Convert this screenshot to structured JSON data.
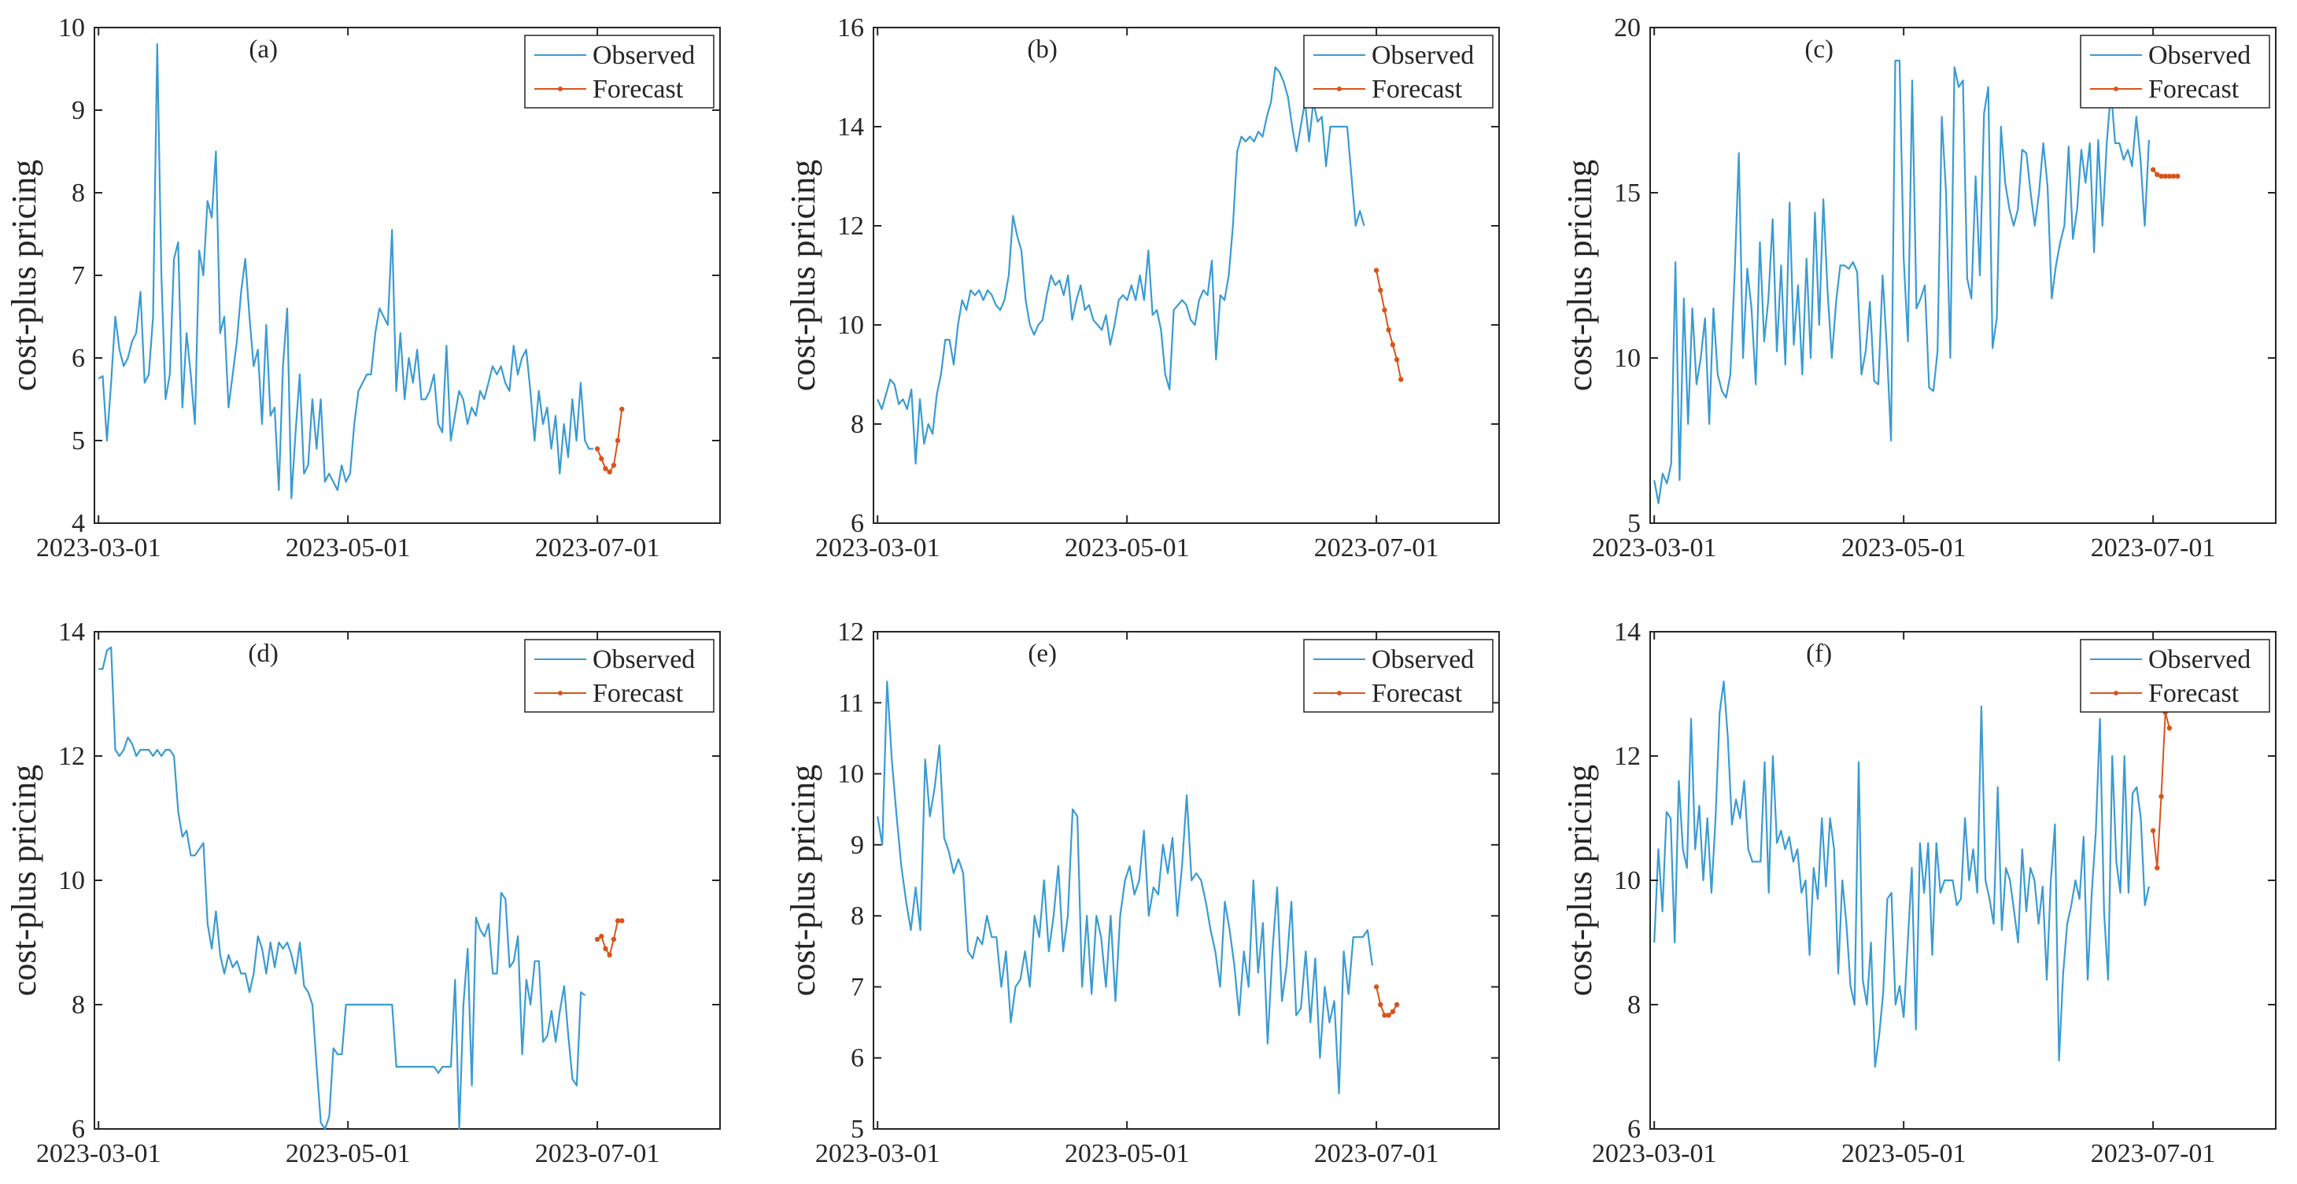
{
  "colors": {
    "observed": "#3a9bd2",
    "forecast": "#d9541a",
    "axis": "#262626",
    "background": "#ffffff"
  },
  "chart_data": [
    {
      "type": "line",
      "panel_label": "(a)",
      "ylabel": "cost-plus pricing",
      "ylim": [
        4,
        10
      ],
      "yticks": [
        "4",
        "5",
        "6",
        "7",
        "8",
        "9",
        "10"
      ],
      "xticks": [
        "2023-03-01",
        "2023-05-01",
        "2023-07-01"
      ],
      "legend": [
        "Observed",
        "Forecast"
      ],
      "legend_location": "top-right",
      "series": [
        {
          "name": "Observed",
          "values": [
            5.75,
            5.78,
            5.0,
            5.7,
            6.5,
            6.1,
            5.9,
            6.0,
            6.2,
            6.3,
            6.8,
            5.7,
            5.8,
            6.5,
            9.8,
            7.0,
            5.5,
            5.8,
            7.2,
            7.4,
            5.4,
            6.3,
            5.8,
            5.2,
            7.3,
            7.0,
            7.9,
            7.7,
            8.5,
            6.3,
            6.5,
            5.4,
            5.8,
            6.2,
            6.8,
            7.2,
            6.5,
            5.9,
            6.1,
            5.2,
            6.4,
            5.3,
            5.4,
            4.4,
            5.9,
            6.6,
            4.3,
            5.1,
            5.8,
            4.6,
            4.7,
            5.5,
            4.9,
            5.5,
            4.5,
            4.6,
            4.5,
            4.4,
            4.7,
            4.5,
            4.6,
            5.2,
            5.6,
            5.7,
            5.8,
            5.8,
            6.3,
            6.6,
            6.5,
            6.4,
            7.55,
            5.6,
            6.3,
            5.5,
            6.0,
            5.7,
            6.1,
            5.5,
            5.5,
            5.6,
            5.8,
            5.2,
            5.1,
            6.15,
            5.0,
            5.3,
            5.6,
            5.5,
            5.2,
            5.4,
            5.3,
            5.6,
            5.5,
            5.7,
            5.9,
            5.8,
            5.9,
            5.7,
            5.6,
            6.15,
            5.8,
            6.0,
            6.1,
            5.6,
            5.0,
            5.6,
            5.2,
            5.4,
            4.9,
            5.3,
            4.6,
            5.2,
            4.8,
            5.5,
            5.0,
            5.7,
            5.0,
            4.9,
            4.9
          ],
          "x_start": "2023-03-01",
          "x_end": "2023-06-30"
        },
        {
          "name": "Forecast",
          "values": [
            4.9,
            4.78,
            4.66,
            4.62,
            4.7,
            5.0,
            5.38
          ],
          "x_start": "2023-07-01",
          "x_end": "2023-07-07"
        }
      ]
    },
    {
      "type": "line",
      "panel_label": "(b)",
      "ylabel": "cost-plus pricing",
      "ylim": [
        6,
        16
      ],
      "yticks": [
        "6",
        "8",
        "10",
        "12",
        "14",
        "16"
      ],
      "xticks": [
        "2023-03-01",
        "2023-05-01",
        "2023-07-01"
      ],
      "legend": [
        "Observed",
        "Forecast"
      ],
      "legend_location": "top-right",
      "series": [
        {
          "name": "Observed",
          "values": [
            8.5,
            8.3,
            8.6,
            8.9,
            8.8,
            8.4,
            8.5,
            8.3,
            8.7,
            7.2,
            8.5,
            7.6,
            8.0,
            7.8,
            8.6,
            9.0,
            9.7,
            9.7,
            9.2,
            10.0,
            10.5,
            10.3,
            10.7,
            10.6,
            10.7,
            10.5,
            10.7,
            10.6,
            10.4,
            10.3,
            10.5,
            11.0,
            12.2,
            11.8,
            11.5,
            10.5,
            10.0,
            9.8,
            10.0,
            10.1,
            10.6,
            11.0,
            10.8,
            10.9,
            10.6,
            11.0,
            10.1,
            10.5,
            10.8,
            10.3,
            10.4,
            10.1,
            10.0,
            9.9,
            10.2,
            9.6,
            10.0,
            10.5,
            10.6,
            10.5,
            10.8,
            10.5,
            11.0,
            10.5,
            11.5,
            10.2,
            10.3,
            9.9,
            9.0,
            8.7,
            10.3,
            10.4,
            10.5,
            10.4,
            10.1,
            10.0,
            10.5,
            10.7,
            10.6,
            11.3,
            9.3,
            10.6,
            10.5,
            11.0,
            12.0,
            13.5,
            13.8,
            13.7,
            13.8,
            13.7,
            13.9,
            13.8,
            14.2,
            14.5,
            15.2,
            15.1,
            14.9,
            14.6,
            14.0,
            13.5,
            14.0,
            14.5,
            13.7,
            14.5,
            14.1,
            14.2,
            13.2,
            14.0,
            14.0,
            14.0,
            14.0,
            14.0,
            13.0,
            12.0,
            12.3,
            12.0
          ],
          "x_start": "2023-03-01",
          "x_end": "2023-06-28"
        },
        {
          "name": "Forecast",
          "values": [
            11.1,
            10.7,
            10.3,
            9.9,
            9.6,
            9.3,
            8.9
          ],
          "x_start": "2023-07-01",
          "x_end": "2023-07-07"
        }
      ]
    },
    {
      "type": "line",
      "panel_label": "(c)",
      "ylabel": "cost-plus pricing",
      "ylim": [
        5,
        20
      ],
      "yticks": [
        "5",
        "10",
        "15",
        "20"
      ],
      "xticks": [
        "2023-03-01",
        "2023-05-01",
        "2023-07-01"
      ],
      "legend": [
        "Observed",
        "Forecast"
      ],
      "legend_location": "top-right",
      "series": [
        {
          "name": "Observed",
          "values": [
            6.3,
            5.6,
            6.5,
            6.2,
            6.8,
            12.9,
            6.3,
            11.8,
            8.0,
            11.5,
            9.2,
            10.0,
            11.2,
            8.0,
            11.5,
            9.5,
            9.0,
            8.8,
            9.5,
            12.5,
            16.2,
            10.0,
            12.7,
            11.5,
            9.2,
            13.5,
            10.5,
            11.8,
            14.2,
            10.2,
            12.8,
            9.8,
            14.7,
            10.4,
            12.2,
            9.5,
            13.0,
            10.0,
            14.4,
            11.0,
            14.8,
            12.0,
            10.0,
            11.7,
            12.8,
            12.8,
            12.7,
            12.9,
            12.6,
            9.5,
            10.2,
            11.7,
            9.3,
            9.2,
            12.5,
            10.3,
            7.5,
            19.0,
            19.0,
            13.0,
            10.5,
            18.4,
            11.5,
            11.8,
            12.2,
            9.1,
            9.0,
            10.2,
            17.3,
            15.0,
            10.0,
            18.8,
            18.2,
            18.4,
            12.4,
            11.8,
            15.5,
            12.5,
            17.4,
            18.2,
            10.3,
            11.2,
            17.0,
            15.3,
            14.5,
            14.0,
            14.5,
            16.3,
            16.2,
            15.0,
            14.0,
            15.0,
            16.5,
            15.2,
            11.8,
            12.8,
            13.5,
            14.0,
            16.4,
            13.6,
            14.5,
            16.3,
            15.3,
            16.5,
            13.2,
            16.6,
            14.0,
            16.5,
            18.1,
            16.5,
            16.5,
            16.0,
            16.3,
            15.8,
            17.3,
            16.0,
            14.0,
            16.6
          ],
          "x_start": "2023-03-01",
          "x_end": "2023-06-30"
        },
        {
          "name": "Forecast",
          "values": [
            15.7,
            15.55,
            15.5,
            15.5,
            15.5,
            15.5,
            15.5
          ],
          "x_start": "2023-07-01",
          "x_end": "2023-07-07"
        }
      ]
    },
    {
      "type": "line",
      "panel_label": "(d)",
      "ylabel": "cost-plus pricing",
      "ylim": [
        6,
        14
      ],
      "yticks": [
        "6",
        "8",
        "10",
        "12",
        "14"
      ],
      "xticks": [
        "2023-03-01",
        "2023-05-01",
        "2023-07-01"
      ],
      "legend": [
        "Observed",
        "Forecast"
      ],
      "legend_location": "top-right",
      "series": [
        {
          "name": "Observed",
          "values": [
            13.4,
            13.4,
            13.7,
            13.75,
            12.1,
            12.0,
            12.1,
            12.3,
            12.2,
            12.0,
            12.1,
            12.1,
            12.1,
            12.0,
            12.1,
            12.0,
            12.1,
            12.1,
            12.0,
            11.1,
            10.7,
            10.8,
            10.4,
            10.4,
            10.5,
            10.6,
            9.3,
            8.9,
            9.5,
            8.8,
            8.5,
            8.8,
            8.6,
            8.7,
            8.5,
            8.5,
            8.2,
            8.5,
            9.1,
            8.9,
            8.5,
            9.0,
            8.6,
            9.0,
            8.9,
            9.0,
            8.8,
            8.5,
            9.0,
            8.3,
            8.2,
            8.0,
            7.0,
            6.1,
            6.0,
            6.2,
            7.3,
            7.2,
            7.2,
            8.0,
            8.0,
            8.0,
            8.0,
            8.0,
            8.0,
            8.0,
            8.0,
            8.0,
            8.0,
            8.0,
            8.0,
            7.0,
            7.0,
            7.0,
            7.0,
            7.0,
            7.0,
            7.0,
            7.0,
            7.0,
            7.0,
            6.9,
            7.0,
            7.0,
            7.0,
            8.4,
            6.0,
            8.0,
            8.9,
            6.7,
            9.4,
            9.2,
            9.1,
            9.3,
            8.5,
            8.5,
            9.8,
            9.7,
            8.6,
            8.7,
            9.1,
            7.2,
            8.4,
            8.0,
            8.7,
            8.7,
            7.4,
            7.5,
            7.9,
            7.4,
            7.9,
            8.3,
            7.5,
            6.8,
            6.7,
            8.2,
            8.15
          ],
          "x_start": "2023-03-01",
          "x_end": "2023-06-28"
        },
        {
          "name": "Forecast",
          "values": [
            9.05,
            9.1,
            8.9,
            8.8,
            9.05,
            9.35,
            9.35
          ],
          "x_start": "2023-07-01",
          "x_end": "2023-07-07"
        }
      ]
    },
    {
      "type": "line",
      "panel_label": "(e)",
      "ylabel": "cost-plus pricing",
      "ylim": [
        5,
        12
      ],
      "yticks": [
        "5",
        "6",
        "7",
        "8",
        "9",
        "10",
        "11",
        "12"
      ],
      "xticks": [
        "2023-03-01",
        "2023-05-01",
        "2023-07-01"
      ],
      "legend": [
        "Observed",
        "Forecast"
      ],
      "legend_location": "top-right",
      "series": [
        {
          "name": "Observed",
          "values": [
            9.4,
            9.0,
            11.3,
            10.2,
            9.4,
            8.7,
            8.2,
            7.8,
            8.4,
            7.8,
            10.2,
            9.4,
            9.8,
            10.4,
            9.1,
            8.9,
            8.6,
            8.8,
            8.6,
            7.5,
            7.4,
            7.7,
            7.6,
            8.0,
            7.7,
            7.7,
            7.0,
            7.5,
            6.5,
            7.0,
            7.1,
            7.5,
            7.0,
            8.0,
            7.7,
            8.5,
            7.5,
            8.0,
            8.7,
            7.5,
            8.0,
            9.5,
            9.4,
            7.0,
            8.0,
            6.9,
            8.0,
            7.7,
            7.0,
            8.0,
            6.8,
            8.0,
            8.5,
            8.7,
            8.3,
            8.5,
            9.2,
            8.0,
            8.4,
            8.3,
            9.0,
            8.6,
            9.1,
            8.0,
            8.7,
            9.7,
            8.5,
            8.6,
            8.5,
            8.2,
            7.8,
            7.5,
            7.0,
            8.2,
            7.8,
            7.3,
            6.6,
            7.5,
            7.0,
            8.5,
            7.2,
            7.9,
            6.2,
            7.5,
            8.4,
            6.8,
            7.3,
            8.2,
            6.6,
            6.7,
            7.5,
            6.5,
            7.4,
            6.0,
            7.0,
            6.5,
            6.8,
            5.5,
            7.5,
            6.9,
            7.7,
            7.7,
            7.7,
            7.8,
            7.3
          ],
          "x_start": "2023-03-01",
          "x_end": "2023-06-30"
        },
        {
          "name": "Forecast",
          "values": [
            7.0,
            6.75,
            6.6,
            6.6,
            6.65,
            6.75
          ],
          "x_start": "2023-07-01",
          "x_end": "2023-07-06"
        }
      ]
    },
    {
      "type": "line",
      "panel_label": "(f)",
      "ylabel": "cost-plus pricing",
      "ylim": [
        6,
        14
      ],
      "yticks": [
        "6",
        "8",
        "10",
        "12",
        "14"
      ],
      "xticks": [
        "2023-03-01",
        "2023-05-01",
        "2023-07-01"
      ],
      "legend": [
        "Observed",
        "Forecast"
      ],
      "legend_location": "top-right",
      "series": [
        {
          "name": "Observed",
          "values": [
            9.0,
            10.5,
            9.5,
            11.1,
            11.0,
            9.0,
            11.6,
            10.5,
            10.2,
            12.6,
            10.5,
            11.2,
            10.0,
            11.0,
            9.8,
            11.0,
            12.7,
            13.2,
            12.3,
            10.9,
            11.3,
            11.0,
            11.6,
            10.5,
            10.3,
            10.3,
            10.3,
            11.9,
            9.8,
            12.0,
            10.6,
            10.8,
            10.5,
            10.7,
            10.3,
            10.5,
            9.8,
            10.0,
            8.8,
            10.2,
            9.7,
            11.0,
            9.9,
            11.0,
            10.5,
            8.5,
            10.0,
            9.3,
            8.3,
            8.0,
            11.9,
            8.4,
            8.0,
            9.0,
            7.0,
            7.5,
            8.2,
            9.7,
            9.8,
            8.0,
            8.3,
            7.8,
            9.0,
            10.2,
            7.6,
            10.6,
            9.8,
            10.6,
            8.8,
            10.6,
            9.8,
            10.0,
            10.0,
            10.0,
            9.6,
            9.7,
            11.0,
            10.0,
            10.5,
            9.8,
            12.8,
            10.0,
            9.7,
            9.3,
            11.5,
            9.2,
            10.2,
            10.0,
            9.5,
            9.0,
            10.5,
            9.5,
            10.2,
            10.0,
            9.3,
            9.9,
            8.4,
            10.0,
            10.9,
            7.1,
            8.5,
            9.3,
            9.6,
            10.0,
            9.7,
            10.7,
            8.4,
            9.8,
            10.8,
            12.6,
            9.5,
            8.4,
            12.0,
            10.3,
            9.8,
            12.0,
            9.8,
            11.4,
            11.5,
            11.0,
            9.6,
            9.9
          ],
          "x_start": "2023-03-01",
          "x_end": "2023-06-30"
        },
        {
          "name": "Forecast",
          "values": [
            10.8,
            10.2,
            11.35,
            12.7,
            12.45
          ],
          "x_start": "2023-07-01",
          "x_end": "2023-07-05"
        }
      ]
    }
  ]
}
